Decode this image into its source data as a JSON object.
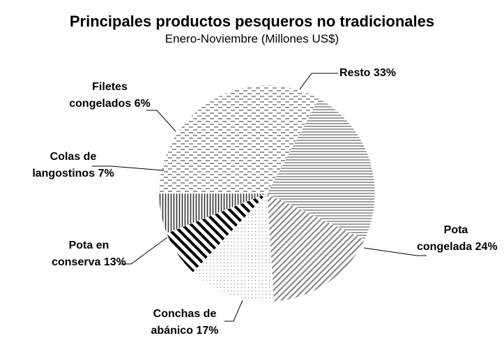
{
  "chart_data": {
    "type": "pie",
    "title": "Principales productos pesqueros no tradicionales",
    "subtitle": "Enero-Noviembre (Millones US$)",
    "categories": [
      "Resto",
      "Pota congelada",
      "Conchas de abánico",
      "Pota en conserva",
      "Colas de langostinos",
      "Filetes congelados"
    ],
    "values": [
      33,
      24,
      17,
      13,
      7,
      6
    ],
    "value_labels": [
      "33%",
      "24%",
      "17%",
      "13%",
      "7%",
      "6%"
    ]
  }
}
